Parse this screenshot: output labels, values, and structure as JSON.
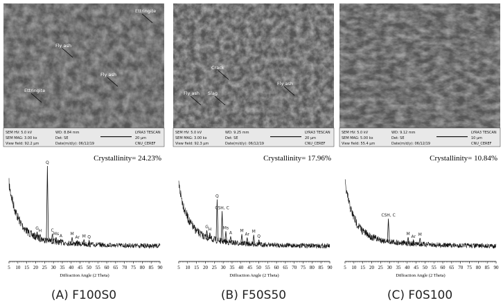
{
  "panels": [
    {
      "caption": "(A) F100S0",
      "sem": {
        "info": [
          "SEM HV: 5.0 kV",
          "WD: 8.84 mm",
          "LYRA3 TESCAN",
          "SEM MAG: 3.00 kx",
          "Det: SE",
          "20 μm",
          "View field: 92.2 μm",
          "Date(m/d/y): 06/12/19",
          "CNU_CEREF"
        ],
        "annotations": [
          "Ettringite",
          "Fly ash",
          "Fly ash",
          "Ettringite"
        ]
      },
      "xrd": {
        "crystallinity": "Crystallinity= 24.23%",
        "x_label": "Diffraction Angle (2 Theta)",
        "xlim": [
          5,
          90
        ],
        "ylim": [
          0,
          100
        ],
        "xticks": [
          5,
          10,
          15,
          20,
          25,
          30,
          35,
          40,
          45,
          50,
          55,
          60,
          65,
          70,
          75,
          80,
          85,
          90
        ],
        "peaks": [
          {
            "label": "G",
            "angle": 20.8,
            "intensity": 8
          },
          {
            "label": "H",
            "angle": 22.5,
            "intensity": 6
          },
          {
            "label": "Q",
            "angle": 26.6,
            "intensity": 100
          },
          {
            "label": "C",
            "angle": 29.4,
            "intensity": 10
          },
          {
            "label": "Ms",
            "angle": 31.5,
            "intensity": 6
          },
          {
            "label": "A",
            "angle": 34.2,
            "intensity": 4
          },
          {
            "label": "M",
            "angle": 40.5,
            "intensity": 8
          },
          {
            "label": "Ar",
            "angle": 43.5,
            "intensity": 4
          },
          {
            "label": "M",
            "angle": 47.2,
            "intensity": 6
          },
          {
            "label": "Q",
            "angle": 50.1,
            "intensity": 5
          }
        ]
      }
    },
    {
      "caption": "(B) F50S50",
      "sem": {
        "info": [
          "SEM HV: 5.0 kV",
          "WD: 9.25 mm",
          "LYRA3 TESCAN",
          "SEM MAG: 3.00 kx",
          "Det: SE",
          "20 μm",
          "View field: 92.3 μm",
          "Date(m/d/y): 06/12/19",
          "CNU_CEREF"
        ],
        "annotations": [
          "Crack",
          "Fly ash",
          "Fly ash",
          "Slag"
        ]
      },
      "xrd": {
        "crystallinity": "Crystallinity= 17.96%",
        "x_label": "Diffraction Angle (2 Theta)",
        "xlim": [
          5,
          90
        ],
        "ylim": [
          0,
          100
        ],
        "xticks": [
          5,
          10,
          15,
          20,
          25,
          30,
          35,
          40,
          45,
          50,
          55,
          60,
          65,
          70,
          75,
          80,
          85,
          90
        ],
        "peaks": [
          {
            "label": "G",
            "angle": 20.8,
            "intensity": 10
          },
          {
            "label": "H",
            "angle": 22.5,
            "intensity": 8
          },
          {
            "label": "Q",
            "angle": 26.6,
            "intensity": 55
          },
          {
            "label": "CSH, C",
            "angle": 29.4,
            "intensity": 40
          },
          {
            "label": "Ms",
            "angle": 31.5,
            "intensity": 14
          },
          {
            "label": "A",
            "angle": 34.2,
            "intensity": 8
          },
          {
            "label": "M",
            "angle": 40.5,
            "intensity": 12
          },
          {
            "label": "Ar",
            "angle": 43.5,
            "intensity": 8
          },
          {
            "label": "M",
            "angle": 47.2,
            "intensity": 12
          },
          {
            "label": "Q",
            "angle": 50.1,
            "intensity": 6
          }
        ]
      }
    },
    {
      "caption": "(C) F0S100",
      "sem": {
        "info": [
          "SEM HV: 5.0 kV",
          "WD: 9.12 mm",
          "LYRA3 TESCAN",
          "SEM MAG: 5.00 kx",
          "Det: SE",
          "10 μm",
          "View field: 55.4 μm",
          "Date(m/d/y): 06/12/19",
          "CNU_CEREF"
        ],
        "annotations": []
      },
      "xrd": {
        "crystallinity": "Crystallinity= 10.84%",
        "x_label": "Diffraction Angle (2 Theta)",
        "xlim": [
          5,
          90
        ],
        "ylim": [
          0,
          100
        ],
        "xticks": [
          5,
          10,
          15,
          20,
          25,
          30,
          35,
          40,
          45,
          50,
          55,
          60,
          65,
          70,
          75,
          80,
          85,
          90
        ],
        "peaks": [
          {
            "label": "CSH, C",
            "angle": 29.4,
            "intensity": 30
          },
          {
            "label": "M",
            "angle": 40.5,
            "intensity": 8
          },
          {
            "label": "Ar",
            "angle": 43.5,
            "intensity": 5
          },
          {
            "label": "M",
            "angle": 47.2,
            "intensity": 8
          }
        ]
      }
    }
  ]
}
